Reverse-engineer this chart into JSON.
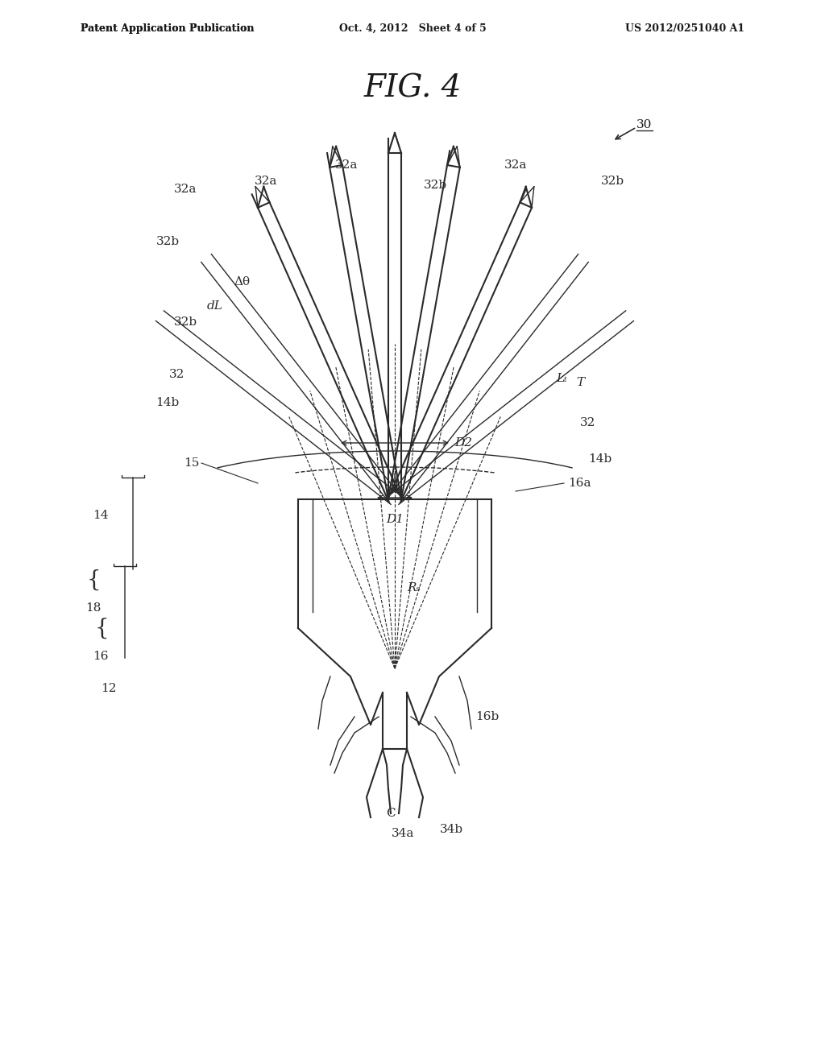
{
  "bg_color": "#ffffff",
  "line_color": "#2a2a2a",
  "title": "FIG. 4",
  "header_left": "Patent Application Publication",
  "header_center": "Oct. 4, 2012   Sheet 4 of 5",
  "header_right": "US 2012/0251040 A1",
  "fig_label": "30",
  "labels": {
    "32a_top_left": "32a",
    "32b_top_left": "32b",
    "32a_top_mid_left": "32a",
    "32b_top_mid": "32b",
    "32a_top_mid": "32a",
    "32b_top_right": "32b",
    "32a_top_right": "32a",
    "delta_theta": "Δθ",
    "dL": "dL",
    "D1": "D1",
    "D2": "D2",
    "T": "T",
    "32_left": "32",
    "14b_left": "14b",
    "32_right": "32",
    "14b_right": "14b",
    "15": "15",
    "16a": "16a",
    "Lt": "Lₜ",
    "14": "14",
    "18": "18",
    "16": "16",
    "12": "12",
    "Rs": "Rₛ",
    "34a": "34a",
    "34b": "34b",
    "C": "C",
    "16b": "16b"
  }
}
